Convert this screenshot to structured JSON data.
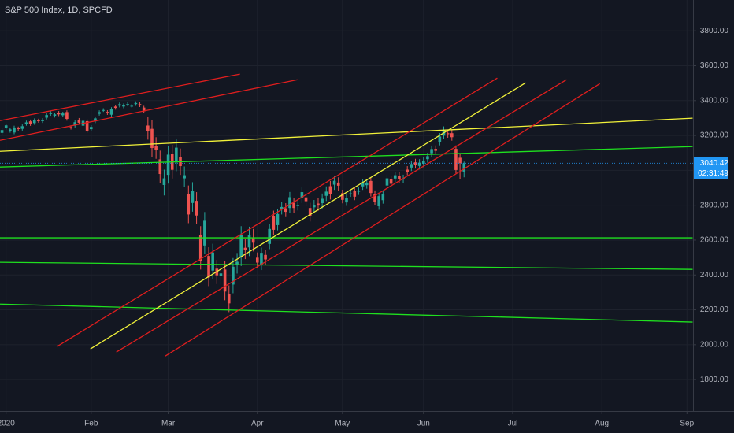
{
  "chart_data": {
    "type": "candlestick",
    "title": "S&P 500 Index, 1D, SPCFD",
    "up_color": "#26a69a",
    "down_color": "#ef5350",
    "grid": true,
    "xlim": [
      -0.5,
      170.5
    ],
    "ylim": [
      1620,
      3977
    ],
    "xticks": [
      {
        "value": 1,
        "label": "2020"
      },
      {
        "value": 22,
        "label": "Feb"
      },
      {
        "value": 41,
        "label": "Mar"
      },
      {
        "value": 63,
        "label": "Apr"
      },
      {
        "value": 84,
        "label": "May"
      },
      {
        "value": 104,
        "label": "Jun"
      },
      {
        "value": 126,
        "label": "Jul"
      },
      {
        "value": 148,
        "label": "Aug"
      },
      {
        "value": 169,
        "label": "Sep"
      }
    ],
    "yticks": [
      {
        "value": 1800,
        "label": "1800.00"
      },
      {
        "value": 2000,
        "label": "2000.00"
      },
      {
        "value": 2200,
        "label": "2200.00"
      },
      {
        "value": 2400,
        "label": "2400.00"
      },
      {
        "value": 2600,
        "label": "2600.00"
      },
      {
        "value": 2800,
        "label": "2800.00"
      },
      {
        "value": 3000,
        "label": "3000.00"
      },
      {
        "value": 3200,
        "label": "3200.00"
      },
      {
        "value": 3400,
        "label": "3400.00"
      },
      {
        "value": 3600,
        "label": "3600.00"
      },
      {
        "value": 3800,
        "label": "3800.00"
      }
    ],
    "open": [
      3215,
      3244,
      3226,
      3217,
      3241,
      3238,
      3266,
      3281,
      3271,
      3286,
      3282,
      3302,
      3323,
      3313,
      3330,
      3316,
      3334,
      3248,
      3256,
      3290,
      3256,
      3282,
      3236,
      3281,
      3324,
      3345,
      3335,
      3319,
      3366,
      3371,
      3366,
      3378,
      3370,
      3380,
      3380,
      3360,
      3257,
      3238,
      3140,
      3063,
      2916,
      2974,
      3096,
      3045,
      3075,
      2954,
      2863,
      2813,
      2825,
      2630,
      2569,
      2509,
      2425,
      2436,
      2394,
      2431,
      2290,
      2345,
      2458,
      2501,
      2556,
      2558,
      2614,
      2499,
      2458,
      2515,
      2578,
      2739,
      2686,
      2777,
      2782,
      2784,
      2813,
      2800,
      2843,
      2845,
      2784,
      2788,
      2810,
      2812,
      2854,
      2909,
      2918,
      2930,
      2869,
      2816,
      2868,
      2883,
      2879,
      2908,
      2915,
      2939,
      2865,
      2794,
      2829,
      2913,
      2948,
      2953,
      2969,
      2948,
      3004,
      3016,
      3046,
      3025,
      3038,
      3064,
      3098,
      3123,
      3163,
      3199,
      3213,
      3213,
      3123,
      3072,
      2993
    ],
    "high": [
      3241,
      3268,
      3245,
      3256,
      3251,
      3263,
      3285,
      3291,
      3298,
      3296,
      3299,
      3327,
      3340,
      3331,
      3340,
      3336,
      3344,
      3258,
      3286,
      3300,
      3294,
      3292,
      3259,
      3308,
      3344,
      3356,
      3345,
      3362,
      3376,
      3389,
      3384,
      3390,
      3380,
      3396,
      3390,
      3370,
      3307,
      3288,
      3190,
      3113,
      3004,
      3140,
      3146,
      3180,
      3125,
      3022,
      2913,
      2932,
      2875,
      2680,
      2761,
      2559,
      2579,
      2486,
      2459,
      2481,
      2340,
      2497,
      2526,
      2680,
      2606,
      2677,
      2664,
      2529,
      2557,
      2545,
      2694,
      2769,
      2780,
      2820,
      2812,
      2876,
      2843,
      2830,
      2905,
      2875,
      2814,
      2830,
      2840,
      2867,
      2908,
      2939,
      2970,
      2960,
      2889,
      2863,
      2888,
      2903,
      2902,
      2950,
      2950,
      2959,
      2885,
      2872,
      2884,
      2974,
      2968,
      2992,
      2989,
      2975,
      3024,
      3056,
      3066,
      3064,
      3076,
      3101,
      3142,
      3143,
      3214,
      3252,
      3233,
      3233,
      3143,
      3092,
      3050
    ],
    "low": [
      3205,
      3234,
      3216,
      3207,
      3227,
      3228,
      3256,
      3255,
      3261,
      3273,
      3272,
      3292,
      3313,
      3303,
      3311,
      3306,
      3285,
      3234,
      3246,
      3263,
      3246,
      3216,
      3226,
      3271,
      3314,
      3335,
      3318,
      3309,
      3348,
      3361,
      3356,
      3368,
      3360,
      3370,
      3363,
      3328,
      3176,
      3078,
      3066,
      2929,
      2856,
      2924,
      2953,
      2995,
      2974,
      2904,
      2697,
      2763,
      2691,
      2431,
      2519,
      2336,
      2375,
      2348,
      2344,
      2255,
      2187,
      2295,
      2408,
      2451,
      2491,
      2508,
      2535,
      2441,
      2428,
      2459,
      2548,
      2629,
      2656,
      2747,
      2732,
      2754,
      2754,
      2770,
      2813,
      2793,
      2707,
      2758,
      2768,
      2782,
      2824,
      2833,
      2888,
      2882,
      2811,
      2796,
      2848,
      2829,
      2859,
      2888,
      2895,
      2850,
      2800,
      2774,
      2809,
      2893,
      2903,
      2933,
      2929,
      2928,
      2972,
      2996,
      3010,
      3005,
      3018,
      3044,
      3078,
      3092,
      3143,
      3179,
      3187,
      3170,
      2982,
      2950,
      2960
    ],
    "close": [
      3231,
      3258,
      3235,
      3246,
      3237,
      3253,
      3275,
      3265,
      3288,
      3283,
      3289,
      3317,
      3330,
      3321,
      3321,
      3326,
      3295,
      3244,
      3276,
      3273,
      3284,
      3226,
      3249,
      3298,
      3334,
      3346,
      3328,
      3352,
      3358,
      3379,
      3374,
      3380,
      3370,
      3386,
      3373,
      3338,
      3226,
      3128,
      3116,
      2979,
      2954,
      3090,
      3003,
      3130,
      3024,
      2972,
      2747,
      2882,
      2741,
      2481,
      2711,
      2386,
      2529,
      2398,
      2409,
      2305,
      2237,
      2447,
      2476,
      2630,
      2541,
      2627,
      2585,
      2471,
      2527,
      2489,
      2664,
      2659,
      2750,
      2790,
      2762,
      2846,
      2784,
      2800,
      2875,
      2823,
      2737,
      2800,
      2798,
      2837,
      2878,
      2863,
      2940,
      2912,
      2831,
      2843,
      2868,
      2849,
      2882,
      2930,
      2930,
      2870,
      2820,
      2852,
      2864,
      2954,
      2923,
      2972,
      2949,
      2955,
      2992,
      3036,
      3030,
      3044,
      3056,
      3081,
      3122,
      3112,
      3194,
      3232,
      3207,
      3190,
      3002,
      3041,
      3040.42
    ],
    "countdown": "02:31:49",
    "price_color": "#2196f3",
    "trendlines": [
      {
        "color": "#e01e1e",
        "points": [
          [
            -0.5,
            3285
          ],
          [
            58.7,
            3552
          ]
        ]
      },
      {
        "color": "#e01e1e",
        "points": [
          [
            -0.5,
            3172
          ],
          [
            72.9,
            3520
          ]
        ]
      },
      {
        "color": "#f2f23a",
        "points": [
          [
            -0.5,
            3109
          ],
          [
            170.4,
            3299
          ]
        ]
      },
      {
        "color": "#1fe01f",
        "points": [
          [
            -0.5,
            3019
          ],
          [
            170.4,
            3136
          ]
        ]
      },
      {
        "color": "#1fe01f",
        "points": [
          [
            -0.5,
            2613
          ],
          [
            170.4,
            2613
          ]
        ]
      },
      {
        "color": "#1fe01f",
        "points": [
          [
            -0.5,
            2473
          ],
          [
            170.4,
            2432
          ]
        ]
      },
      {
        "color": "#1fe01f",
        "points": [
          [
            -0.5,
            2233
          ],
          [
            170.4,
            2130
          ]
        ]
      },
      {
        "color": "#e01e1e",
        "points": [
          [
            13.5,
            1989
          ],
          [
            122.2,
            3529
          ]
        ]
      },
      {
        "color": "#e01e1e",
        "points": [
          [
            28.2,
            1958
          ],
          [
            139.3,
            3520
          ]
        ]
      },
      {
        "color": "#e01e1e",
        "points": [
          [
            40.3,
            1935
          ],
          [
            147.5,
            3497
          ]
        ]
      },
      {
        "color": "#f2f23a",
        "points": [
          [
            21.8,
            1976
          ],
          [
            129.2,
            3502
          ]
        ]
      }
    ]
  }
}
